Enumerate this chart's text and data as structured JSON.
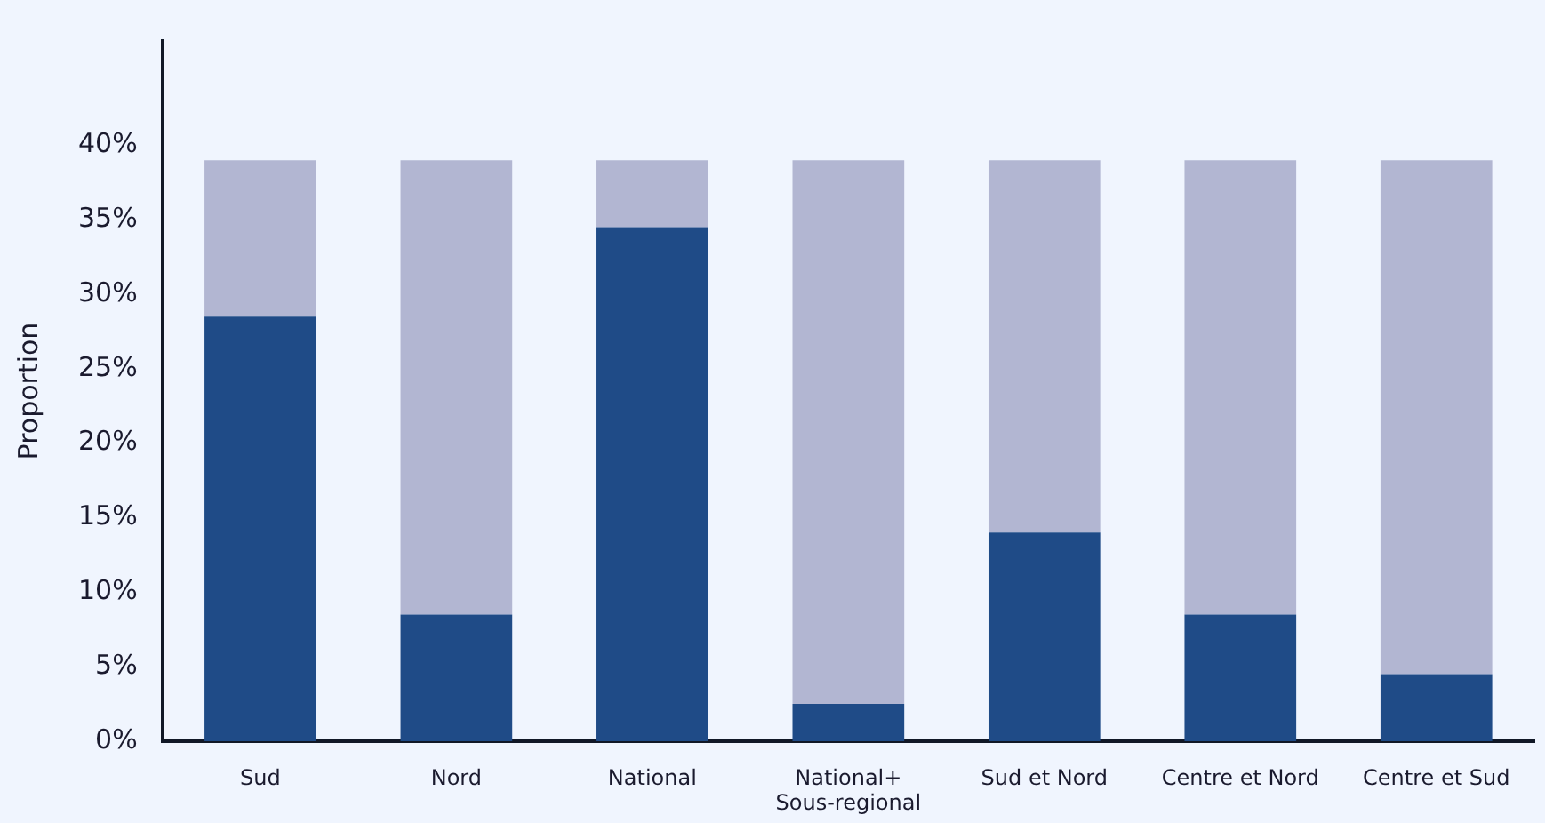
{
  "chart_data": {
    "type": "bar",
    "stacked": true,
    "ylabel": "Proportion",
    "categories": [
      "Sud",
      "Nord",
      "National",
      "National+\nSous-regional",
      "Sud et Nord",
      "Centre et Nord",
      "Centre et Sud"
    ],
    "series": [
      {
        "color": "#1f4b87",
        "values": [
          28.5,
          8.5,
          34.5,
          2.5,
          14,
          8.5,
          4.5
        ]
      },
      {
        "color": "#b2b6d2",
        "values": [
          10.5,
          30.5,
          4.5,
          36.5,
          25,
          30.5,
          34.5
        ]
      }
    ],
    "ylim": [
      0,
      47
    ],
    "yticks": [
      {
        "value": 0,
        "label": "0%"
      },
      {
        "value": 5,
        "label": "5%"
      },
      {
        "value": 10,
        "label": "10%"
      },
      {
        "value": 15,
        "label": "15%"
      },
      {
        "value": 20,
        "label": "20%"
      },
      {
        "value": 25,
        "label": "25%"
      },
      {
        "value": 30,
        "label": "30%"
      },
      {
        "value": 35,
        "label": "35%"
      },
      {
        "value": 40,
        "label": "40%"
      }
    ],
    "grid": false,
    "legend": false
  }
}
